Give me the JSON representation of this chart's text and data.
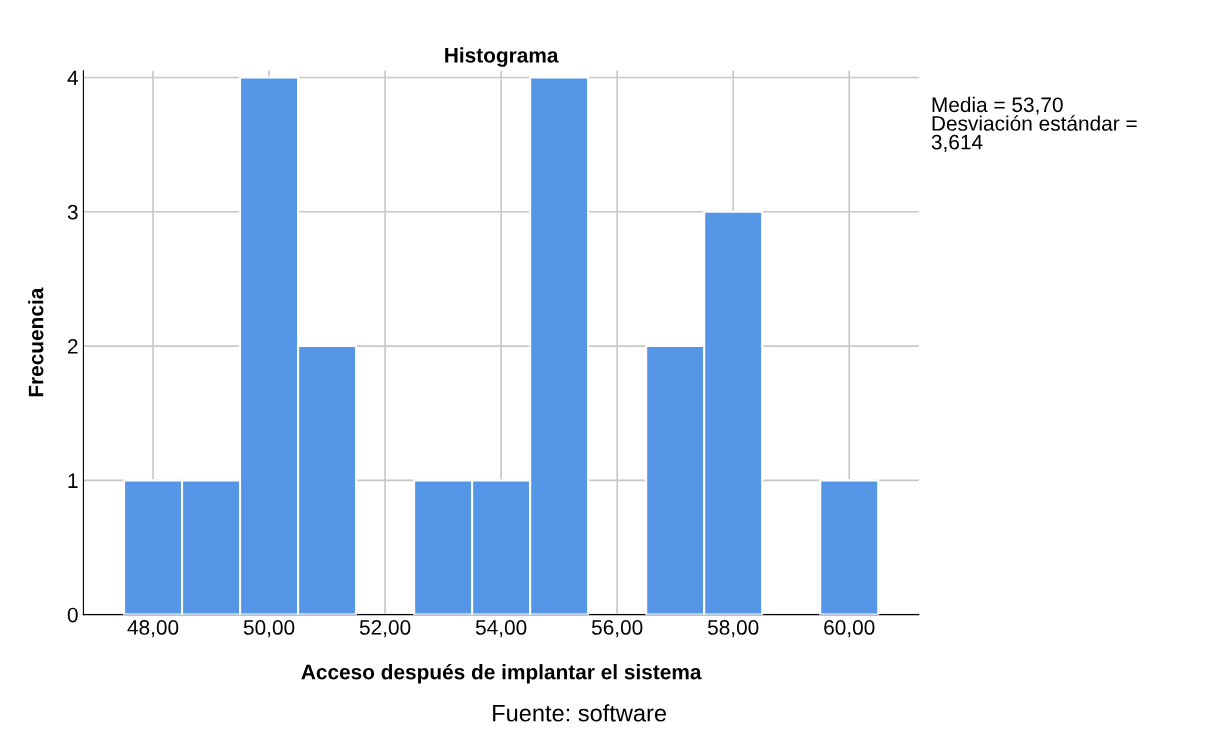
{
  "chart_data": {
    "type": "histogram",
    "title": "Histograma",
    "xlabel": "Acceso después de implantar el sistema",
    "ylabel": "Frecuencia",
    "bins": [
      47.5,
      48.5,
      49.5,
      50.5,
      51.5,
      52.5,
      53.5,
      54.5,
      55.5,
      56.5,
      57.5,
      58.5,
      59.5,
      60.5
    ],
    "values": [
      1,
      1,
      4,
      2,
      0,
      1,
      1,
      4,
      0,
      2,
      3,
      0,
      1
    ],
    "color": "#5596e6",
    "xlim": [
      46.8,
      61.2
    ],
    "ylim": [
      0,
      4.05
    ],
    "xticks": [
      {
        "value": 48,
        "label": "48,00"
      },
      {
        "value": 50,
        "label": "50,00"
      },
      {
        "value": 52,
        "label": "52,00"
      },
      {
        "value": 54,
        "label": "54,00"
      },
      {
        "value": 56,
        "label": "56,00"
      },
      {
        "value": 58,
        "label": "58,00"
      },
      {
        "value": 60,
        "label": "60,00"
      }
    ],
    "yticks": [
      0,
      1,
      2,
      3,
      4
    ],
    "grid": true,
    "annotations": [
      "Media = 53,70\nDesviación estándar =\n3,614",
      "Fuente: software"
    ]
  }
}
